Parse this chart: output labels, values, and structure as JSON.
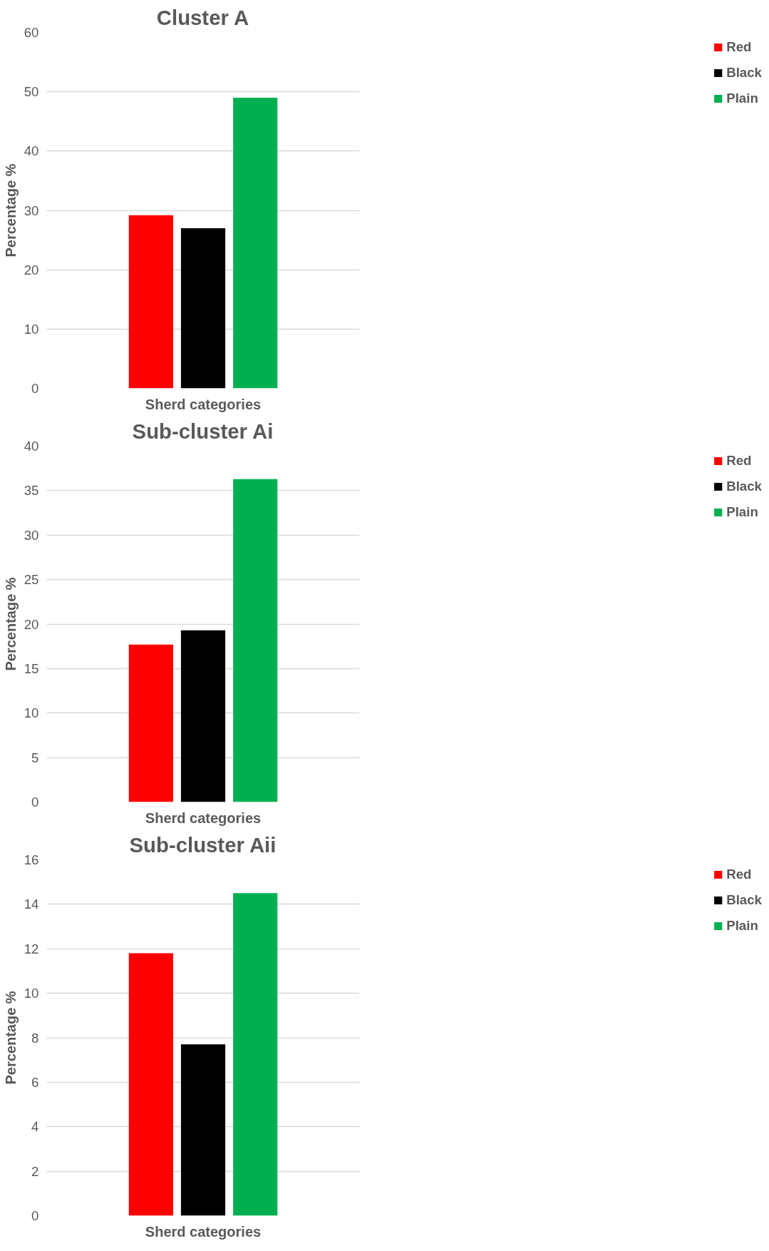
{
  "chart_data": [
    {
      "type": "bar",
      "title": "Cluster A",
      "xlabel": "Sherd categories",
      "ylabel": "Percentage %",
      "categories": [
        null
      ],
      "series": [
        {
          "name": "Red",
          "color": "#ff0000",
          "values": [
            29.2
          ]
        },
        {
          "name": "Black",
          "color": "#000000",
          "values": [
            27.0
          ]
        },
        {
          "name": "Plain",
          "color": "#00b050",
          "values": [
            49.0
          ]
        }
      ],
      "ylim": [
        0,
        60
      ],
      "yticks": [
        0,
        10,
        20,
        30,
        40,
        50,
        60
      ],
      "grid": "y",
      "legend": "right",
      "tick_labels": "y"
    },
    {
      "type": "bar",
      "title": "Sub-cluster Ai",
      "xlabel": "Sherd categories",
      "ylabel": "Percentage %",
      "categories": [
        null
      ],
      "series": [
        {
          "name": "Red",
          "color": "#ff0000",
          "values": [
            17.7
          ]
        },
        {
          "name": "Black",
          "color": "#000000",
          "values": [
            19.3
          ]
        },
        {
          "name": "Plain",
          "color": "#00b050",
          "values": [
            36.3
          ]
        }
      ],
      "ylim": [
        0,
        40
      ],
      "yticks": [
        0,
        5,
        10,
        15,
        20,
        25,
        30,
        35,
        40
      ],
      "grid": "y",
      "legend": "right",
      "tick_labels": "y"
    },
    {
      "type": "bar",
      "title": "Sub-cluster Aii",
      "xlabel": "Sherd categories",
      "ylabel": "Percentage %",
      "categories": [
        null
      ],
      "series": [
        {
          "name": "Red",
          "color": "#ff0000",
          "values": [
            11.8
          ]
        },
        {
          "name": "Black",
          "color": "#000000",
          "values": [
            7.7
          ]
        },
        {
          "name": "Plain",
          "color": "#00b050",
          "values": [
            14.5
          ]
        }
      ],
      "ylim": [
        0,
        16
      ],
      "yticks": [
        0,
        2,
        4,
        6,
        8,
        10,
        12,
        14,
        16
      ],
      "grid": "y",
      "legend": "right",
      "tick_labels": "y"
    }
  ]
}
